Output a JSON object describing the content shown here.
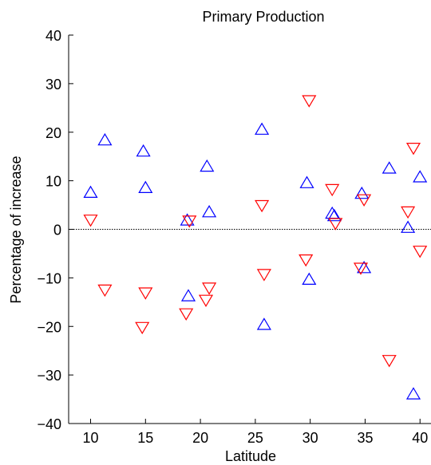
{
  "chart_data": {
    "type": "scatter",
    "title": "Primary Production",
    "xlabel": "Latitude",
    "ylabel": "Percentage of increase",
    "xlim": [
      8,
      41
    ],
    "ylim": [
      -40,
      40
    ],
    "xticks": [
      10,
      15,
      20,
      25,
      30,
      35,
      40
    ],
    "yticks": [
      -40,
      -30,
      -20,
      -10,
      0,
      10,
      20,
      30,
      40
    ],
    "grid": false,
    "reference_line": 0,
    "series": [
      {
        "marker": "triangle-up",
        "color": "#0000ff",
        "points": [
          [
            10.0,
            7.5
          ],
          [
            11.3,
            18.3
          ],
          [
            14.8,
            16.0
          ],
          [
            15.0,
            8.5
          ],
          [
            18.8,
            1.8
          ],
          [
            18.9,
            -13.8
          ],
          [
            20.6,
            12.9
          ],
          [
            20.8,
            3.5
          ],
          [
            25.6,
            20.5
          ],
          [
            25.8,
            -19.7
          ],
          [
            29.7,
            9.5
          ],
          [
            29.9,
            -10.4
          ],
          [
            32.0,
            3.2
          ],
          [
            32.2,
            2.7
          ],
          [
            34.7,
            7.3
          ],
          [
            34.9,
            -8.0
          ],
          [
            37.2,
            12.5
          ],
          [
            38.9,
            0.3
          ],
          [
            39.4,
            -34.0
          ],
          [
            40.0,
            10.7
          ]
        ]
      },
      {
        "marker": "triangle-down",
        "color": "#ff0000",
        "points": [
          [
            10.0,
            2.0
          ],
          [
            11.3,
            -12.4
          ],
          [
            14.7,
            -20.1
          ],
          [
            15.0,
            -13.0
          ],
          [
            18.7,
            -17.3
          ],
          [
            19.0,
            1.8
          ],
          [
            20.5,
            -14.5
          ],
          [
            20.8,
            -12.0
          ],
          [
            25.6,
            5.0
          ],
          [
            25.8,
            -9.2
          ],
          [
            29.6,
            -6.2
          ],
          [
            29.9,
            26.6
          ],
          [
            32.0,
            8.3
          ],
          [
            32.3,
            1.3
          ],
          [
            34.6,
            -7.9
          ],
          [
            34.9,
            6.2
          ],
          [
            37.2,
            -26.9
          ],
          [
            38.9,
            3.7
          ],
          [
            39.4,
            16.8
          ],
          [
            40.0,
            -4.4
          ]
        ]
      }
    ]
  }
}
